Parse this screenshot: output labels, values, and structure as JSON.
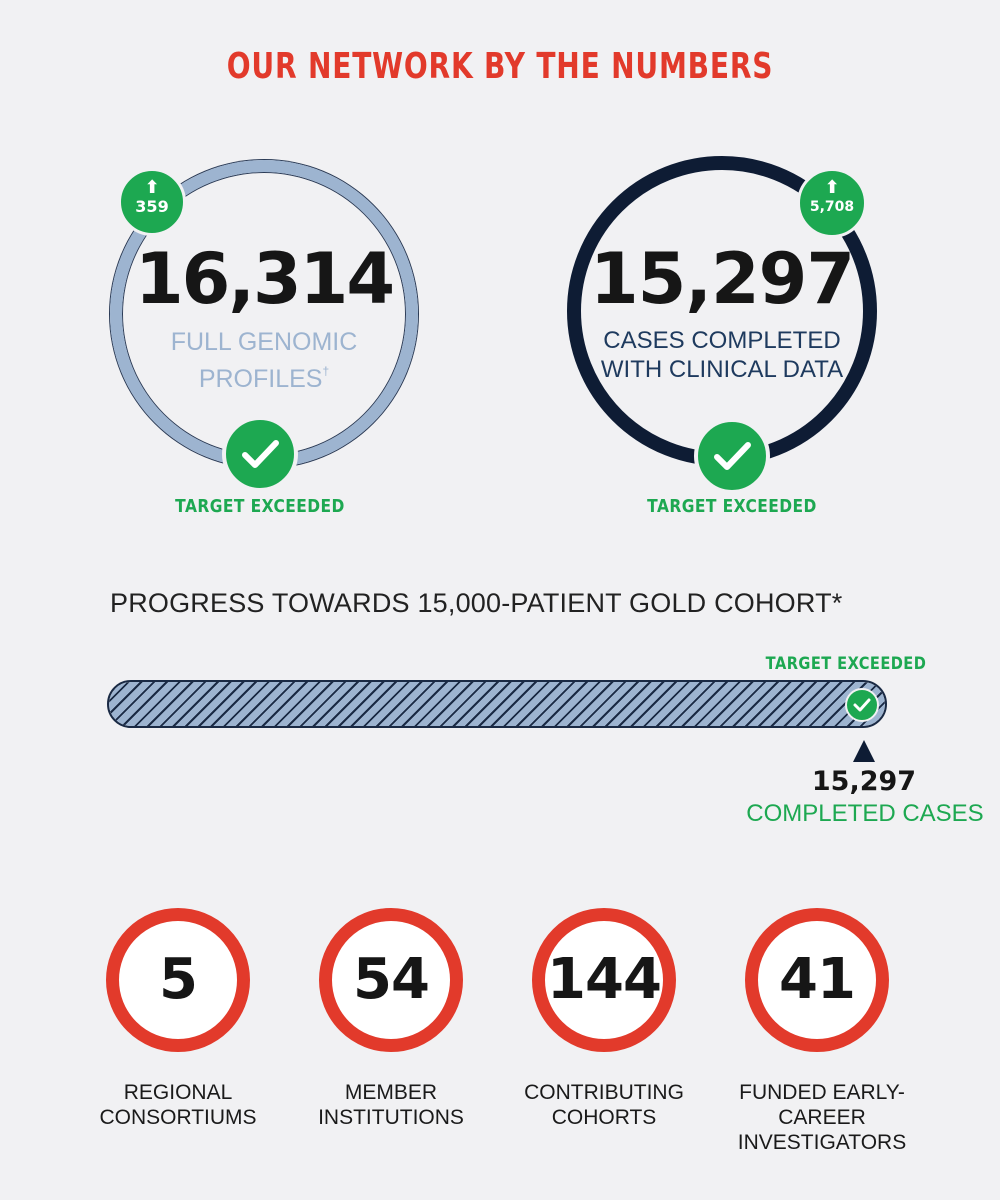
{
  "header": {
    "title": "OUR NETWORK BY THE NUMBERS"
  },
  "colors": {
    "red": "#e23a2b",
    "green": "#1da851",
    "navy": "#0e1c34",
    "light_blue": "#9db4d0"
  },
  "metrics": {
    "genomic": {
      "value": "16,314",
      "label_line1": "FULL GENOMIC",
      "label_line2": "PROFILES",
      "footnote_mark": "†",
      "increase": "359",
      "increase_icon": "arrow-up-icon",
      "status": "TARGET EXCEEDED"
    },
    "clinical": {
      "value": "15,297",
      "label": "CASES COMPLETED WITH CLINICAL DATA",
      "increase": "5,708",
      "increase_icon": "arrow-up-icon",
      "status": "TARGET EXCEEDED"
    }
  },
  "progress": {
    "title": "PROGRESS TOWARDS 15,000-PATIENT GOLD COHORT*",
    "status": "TARGET EXCEEDED",
    "target": 15000,
    "completed": 15297,
    "completed_label": "15,297",
    "completed_caption": "COMPLETED CASES"
  },
  "stats": [
    {
      "value": "5",
      "label_line1": "REGIONAL",
      "label_line2": "CONSORTIUMS"
    },
    {
      "value": "54",
      "label_line1": "MEMBER",
      "label_line2": "INSTITUTIONS"
    },
    {
      "value": "144",
      "label_line1": "CONTRIBUTING",
      "label_line2": "COHORTS"
    },
    {
      "value": "41",
      "label_line1": "FUNDED EARLY-CAREER",
      "label_line2": "INVESTIGATORS"
    }
  ]
}
